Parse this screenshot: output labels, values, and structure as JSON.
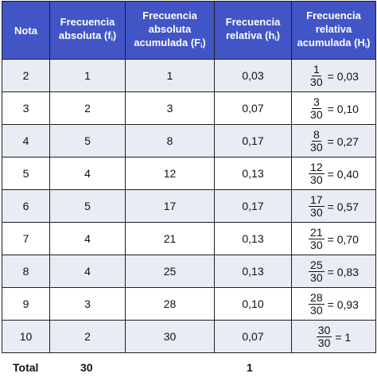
{
  "table": {
    "headers": {
      "nota": "Nota",
      "fa_line1": "Frecuencia",
      "fa_line2": "absoluta (f",
      "fa_sub": "i",
      "fa_close": ")",
      "faa_line1": "Frecuencia",
      "faa_line2": "absoluta",
      "faa_line3": "acumulada (F",
      "faa_sub": "i",
      "faa_close": ")",
      "fr_line1": "Frecuencia",
      "fr_line2": "relativa (h",
      "fr_sub": "i",
      "fr_close": ")",
      "fra_line1": "Frecuencia",
      "fra_line2": "relativa",
      "fra_line3": "acumulada (H",
      "fra_sub": "i",
      "fra_close": ")"
    },
    "rows": [
      {
        "nota": "2",
        "fi": "1",
        "Fi": "1",
        "hi": "0,03",
        "num": "1",
        "den": "30",
        "result": "= 0,03"
      },
      {
        "nota": "3",
        "fi": "2",
        "Fi": "3",
        "hi": "0,07",
        "num": "3",
        "den": "30",
        "result": "= 0,10"
      },
      {
        "nota": "4",
        "fi": "5",
        "Fi": "8",
        "hi": "0,17",
        "num": "8",
        "den": "30",
        "result": "= 0,27"
      },
      {
        "nota": "5",
        "fi": "4",
        "Fi": "12",
        "hi": "0,13",
        "num": "12",
        "den": "30",
        "result": "= 0,40"
      },
      {
        "nota": "6",
        "fi": "5",
        "Fi": "17",
        "hi": "0,17",
        "num": "17",
        "den": "30",
        "result": "= 0,57"
      },
      {
        "nota": "7",
        "fi": "4",
        "Fi": "21",
        "hi": "0,13",
        "num": "21",
        "den": "30",
        "result": "= 0,70"
      },
      {
        "nota": "8",
        "fi": "4",
        "Fi": "25",
        "hi": "0,13",
        "num": "25",
        "den": "30",
        "result": "= 0,83"
      },
      {
        "nota": "9",
        "fi": "3",
        "Fi": "28",
        "hi": "0,10",
        "num": "28",
        "den": "30",
        "result": "= 0,93"
      },
      {
        "nota": "10",
        "fi": "2",
        "Fi": "30",
        "hi": "0,07",
        "num": "30",
        "den": "30",
        "result": "= 1"
      }
    ],
    "totals": {
      "label": "Total",
      "fi_total": "30",
      "hi_total": "1"
    },
    "colors": {
      "header_bg": "#4155c6",
      "stripe_bg": "#e9ebf5",
      "border": "#1f1f1f"
    }
  }
}
